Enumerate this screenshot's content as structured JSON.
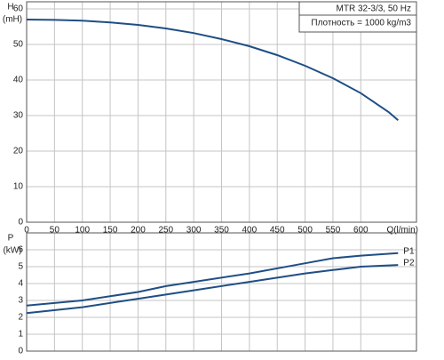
{
  "chart_data": [
    {
      "type": "line",
      "y_label": "H",
      "y_unit": "(mH)",
      "x_label": "Q(l/min)",
      "annotations": [
        "MTR 32-3/3, 50 Hz",
        "Плотность = 1000 kg/m3"
      ],
      "xlim": [
        0,
        700
      ],
      "xticks": [
        0,
        50,
        100,
        150,
        200,
        250,
        300,
        350,
        400,
        450,
        500,
        550,
        600
      ],
      "ylim": [
        0,
        62
      ],
      "yticks": [
        0,
        10,
        20,
        30,
        40,
        50,
        60
      ],
      "grid": true,
      "x": [
        0,
        50,
        100,
        150,
        200,
        250,
        300,
        350,
        400,
        450,
        500,
        550,
        600,
        650,
        667
      ],
      "series": [
        {
          "color": "#1f4e85",
          "values": [
            57,
            56.9,
            56.7,
            56.2,
            55.5,
            54.5,
            53.2,
            51.5,
            49.5,
            47,
            44,
            40.5,
            36.3,
            31,
            28.7
          ]
        }
      ]
    },
    {
      "type": "line",
      "y_label": "P",
      "y_unit": "(kW)",
      "xlim": [
        0,
        700
      ],
      "ylim": [
        0,
        7
      ],
      "yticks": [
        0,
        1,
        2,
        3,
        4,
        5,
        6
      ],
      "grid": true,
      "x": [
        0,
        100,
        200,
        250,
        300,
        400,
        500,
        550,
        600,
        667
      ],
      "series": [
        {
          "name": "P1",
          "color": "#1f4e85",
          "values": [
            2.7,
            3.0,
            3.5,
            3.85,
            4.1,
            4.6,
            5.2,
            5.5,
            5.65,
            5.8
          ]
        },
        {
          "name": "P2",
          "color": "#1f4e85",
          "values": [
            2.25,
            2.6,
            3.1,
            3.35,
            3.6,
            4.1,
            4.6,
            4.8,
            5.0,
            5.1
          ]
        }
      ]
    }
  ]
}
